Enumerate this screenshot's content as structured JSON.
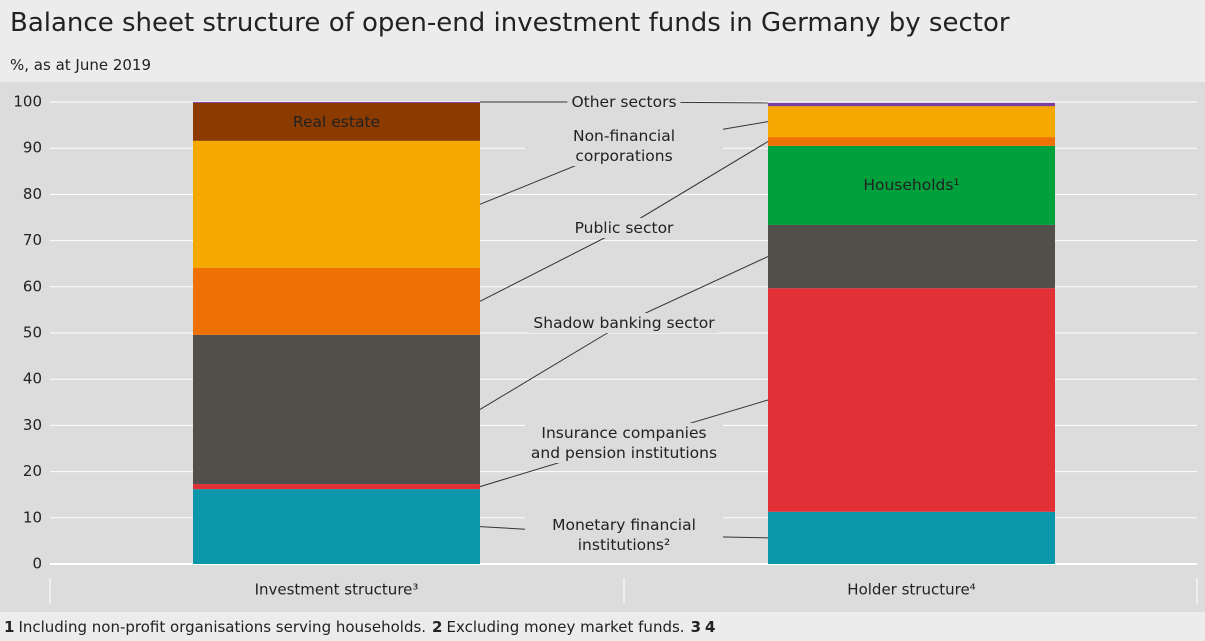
{
  "chart_data": {
    "type": "stacked-bar",
    "title": "Balance sheet structure of open-end investment funds in Germany by sector",
    "subtitle": "%, as at June 2019",
    "categories": [
      "Investment structure³",
      "Holder structure⁴"
    ],
    "series": [
      {
        "name": "Monetary financial institutions²",
        "color": "#0a97a9",
        "values": [
          16.2,
          11.3
        ]
      },
      {
        "name": "Insurance companies and pension institutions",
        "color": "#e13137",
        "values": [
          1.1,
          48.4
        ]
      },
      {
        "name": "Shadow banking sector",
        "color": "#524f4b",
        "values": [
          32.3,
          13.7
        ]
      },
      {
        "name": "Households¹",
        "color": "#00a03c",
        "values": [
          0,
          17.1
        ]
      },
      {
        "name": "Public sector",
        "color": "#ee7203",
        "values": [
          14.5,
          1.9
        ]
      },
      {
        "name": "Non-financial corporations",
        "color": "#f5a800",
        "values": [
          27.5,
          6.7
        ]
      },
      {
        "name": "Real estate",
        "color": "#8b3a00",
        "values": [
          8.2,
          0
        ]
      },
      {
        "name": "Other sectors",
        "color": "#7a3fa0",
        "values": [
          0.2,
          0.7
        ]
      }
    ],
    "ylim": [
      0,
      100
    ],
    "yticks": [
      0,
      10,
      20,
      30,
      40,
      50,
      60,
      70,
      80,
      90,
      100
    ],
    "grid": true,
    "footnotes": [
      {
        "number": "1",
        "text": "Including non-profit organisations serving households."
      },
      {
        "number": "2",
        "text": "Excluding money market funds."
      },
      {
        "number": "3"
      },
      {
        "number": "4"
      }
    ]
  }
}
